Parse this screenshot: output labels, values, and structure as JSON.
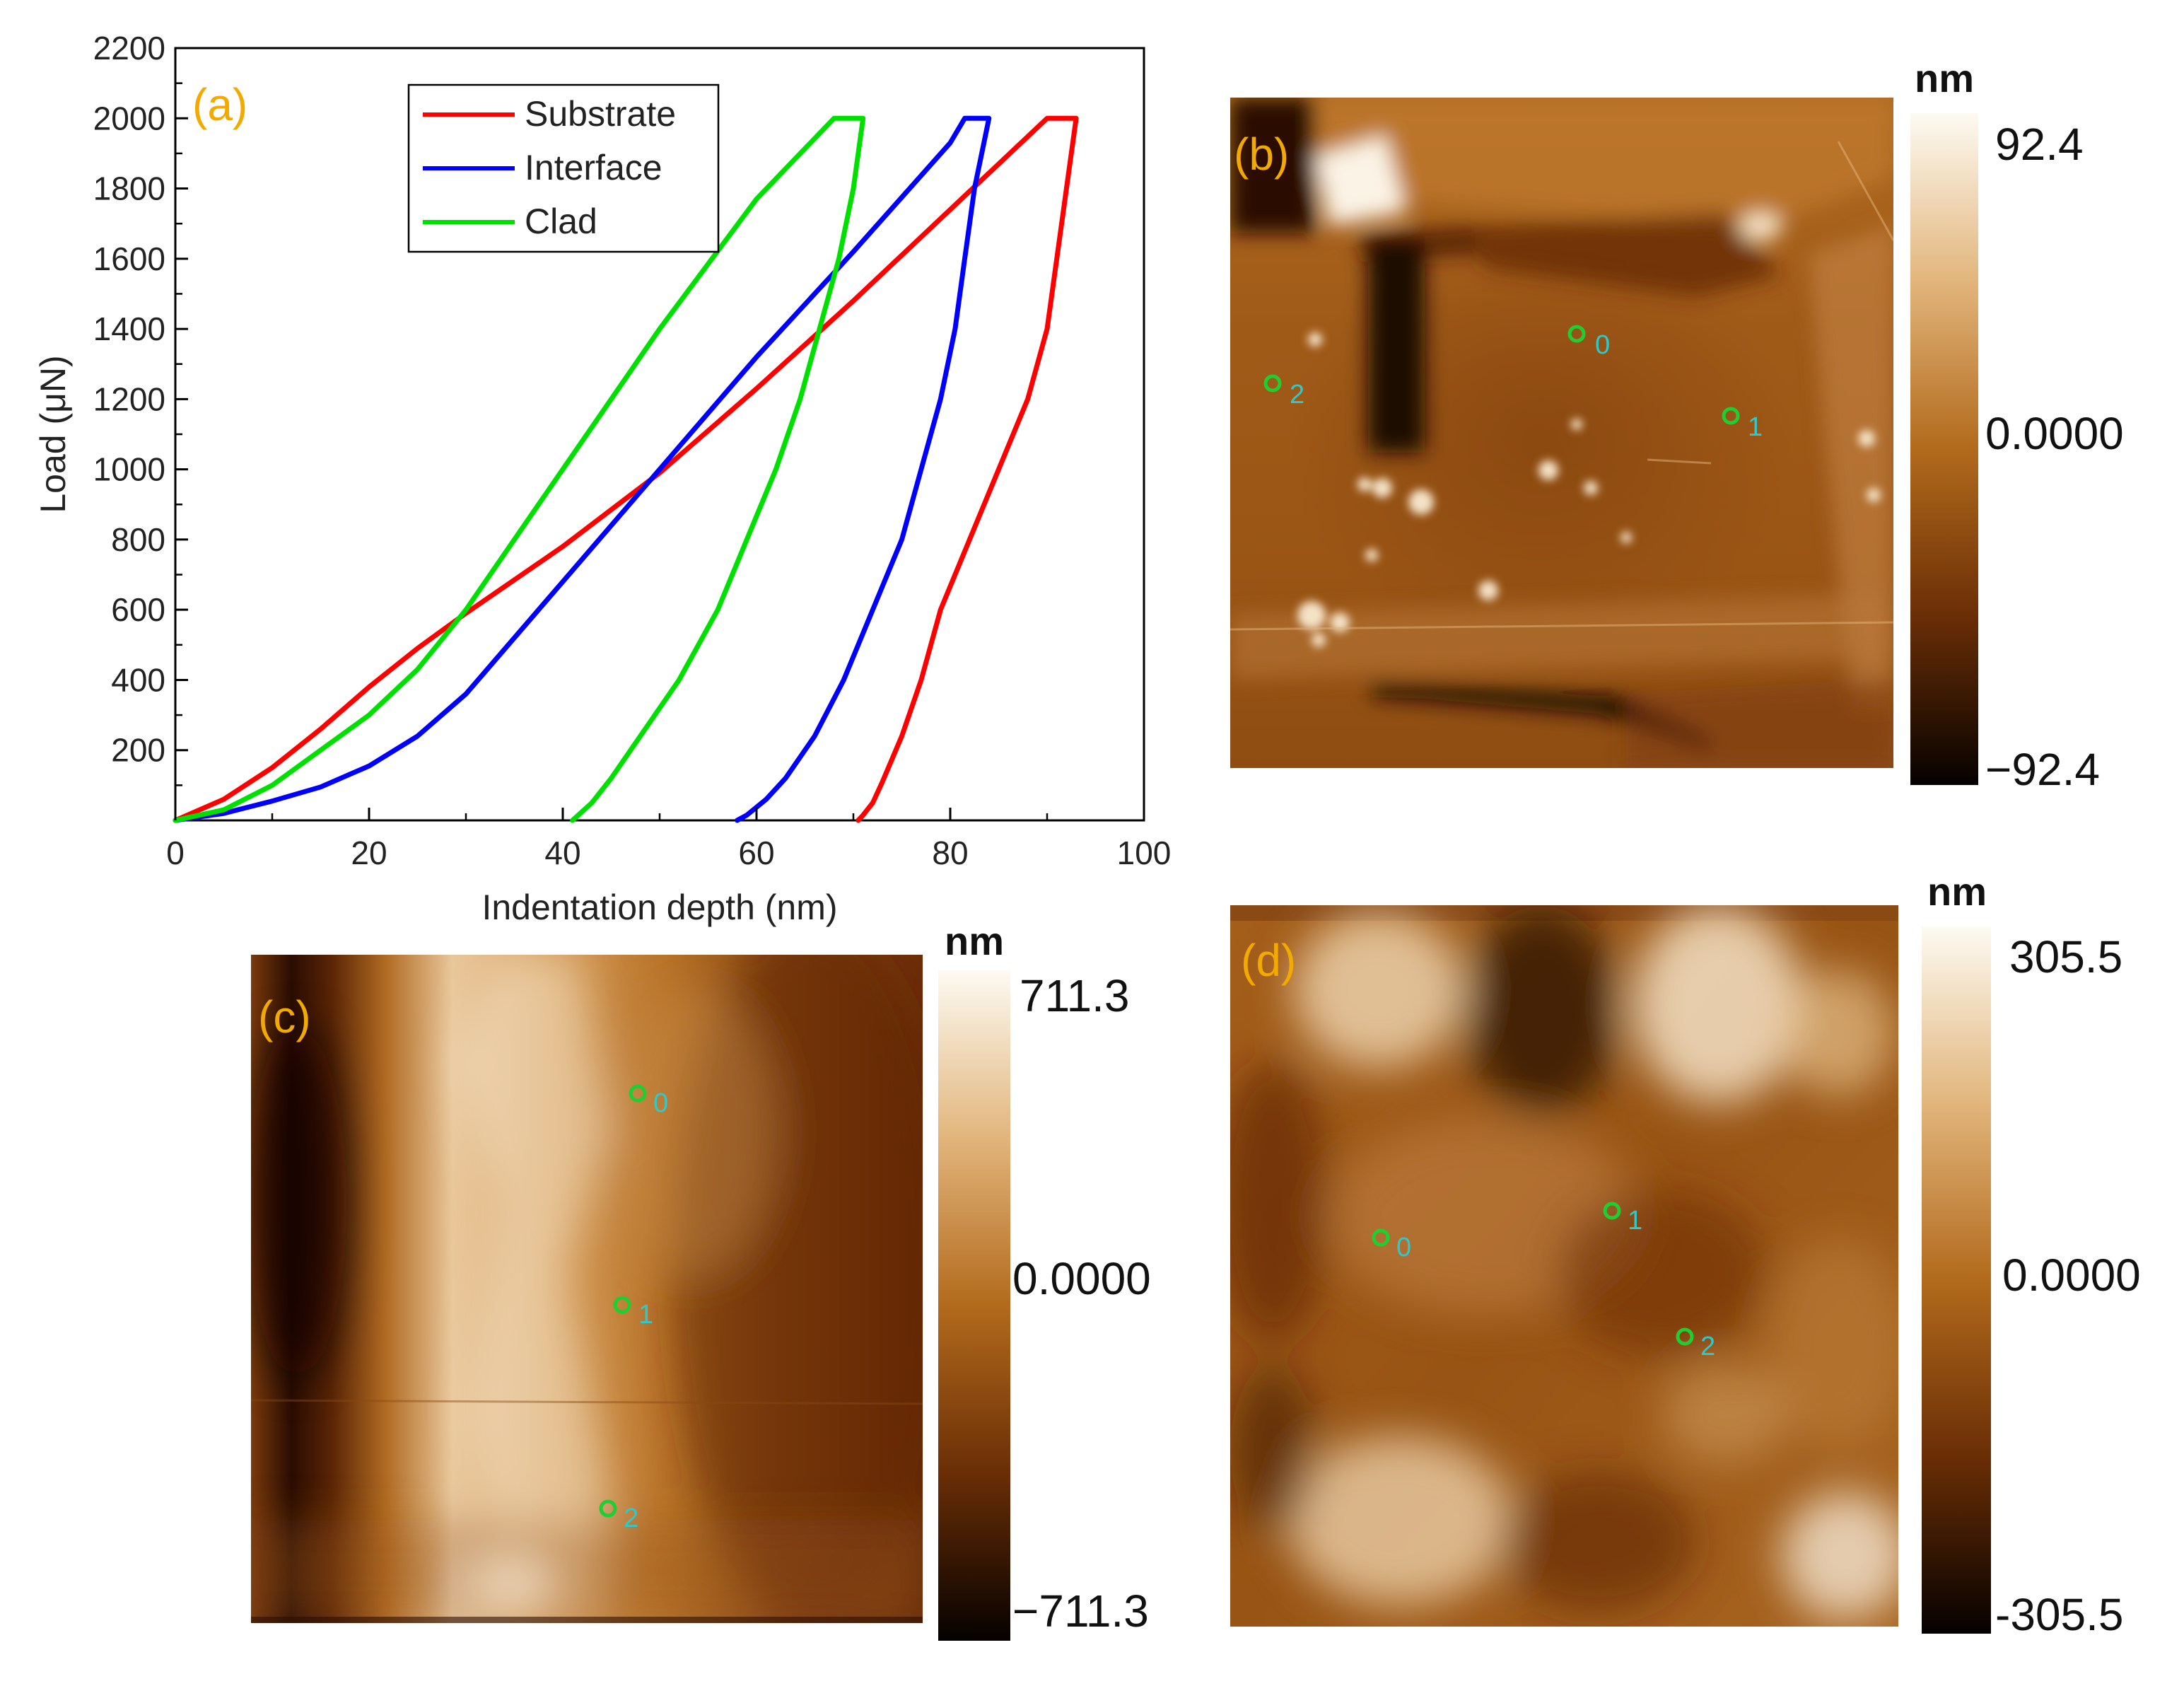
{
  "chart_data": [
    {
      "type": "line",
      "panel_label": "(a)",
      "title": "",
      "xlabel": "Indentation depth (nm)",
      "ylabel": "Load (μN)",
      "xlim": [
        0,
        100
      ],
      "ylim": [
        0,
        2200
      ],
      "xticks": [
        0,
        20,
        40,
        60,
        80,
        100
      ],
      "yticks": [
        200,
        400,
        600,
        800,
        1000,
        1200,
        1400,
        1600,
        1800,
        2000,
        2200
      ],
      "grid": false,
      "legend": "top-center",
      "series": [
        {
          "name": "Substrate",
          "color": "#ff0000",
          "loading": {
            "x": [
              0,
              5,
              10,
              15,
              20,
              25,
              30,
              40,
              50,
              60,
              70,
              80,
              90
            ],
            "y": [
              0,
              60,
              150,
              260,
              380,
              490,
              590,
              780,
              990,
              1230,
              1480,
              1740,
              2000
            ]
          },
          "hold": {
            "x": [
              90,
              93
            ],
            "y": [
              2000,
              2000
            ]
          },
          "unloading": {
            "x": [
              93,
              92,
              91,
              90,
              88,
              85,
              82,
              79,
              77,
              75,
              73,
              72,
              71,
              70.5
            ],
            "y": [
              2000,
              1800,
              1600,
              1400,
              1200,
              1000,
              800,
              600,
              400,
              240,
              110,
              50,
              15,
              0
            ]
          }
        },
        {
          "name": "Interface",
          "color": "#0000ff",
          "loading": {
            "x": [
              0,
              5,
              10,
              15,
              20,
              25,
              30,
              40,
              50,
              60,
              70,
              80,
              81.5
            ],
            "y": [
              0,
              20,
              55,
              95,
              155,
              240,
              360,
              680,
              1000,
              1320,
              1620,
              1930,
              2000
            ]
          },
          "hold": {
            "x": [
              81.5,
              84
            ],
            "y": [
              2000,
              2000
            ]
          },
          "unloading": {
            "x": [
              84,
              82.5,
              81.5,
              80.5,
              79,
              77,
              75,
              72,
              69,
              66,
              63,
              61,
              59,
              58
            ],
            "y": [
              2000,
              1800,
              1600,
              1400,
              1200,
              1000,
              800,
              600,
              400,
              240,
              120,
              60,
              15,
              0
            ]
          }
        },
        {
          "name": "Clad",
          "color": "#00e000",
          "loading": {
            "x": [
              0,
              5,
              10,
              15,
              20,
              25,
              30,
              40,
              50,
              60,
              68
            ],
            "y": [
              0,
              30,
              100,
              200,
              300,
              430,
              600,
              1000,
              1400,
              1770,
              2000
            ]
          },
          "hold": {
            "x": [
              68,
              71
            ],
            "y": [
              2000,
              2000
            ]
          },
          "unloading": {
            "x": [
              71,
              70,
              68.5,
              66.5,
              64.5,
              62,
              59,
              56,
              52,
              48,
              45,
              43,
              41
            ],
            "y": [
              2000,
              1800,
              1600,
              1400,
              1200,
              1000,
              800,
              600,
              400,
              240,
              120,
              50,
              0
            ]
          }
        }
      ]
    },
    {
      "type": "heatmap",
      "panel_label": "(b)",
      "colorbar_unit": "nm",
      "colorbar_max_label": "92.4",
      "colorbar_mid_label": "0.0000",
      "colorbar_min_label": "−92.4",
      "zlim": [
        -92.4,
        92.4
      ],
      "markers": [
        "0",
        "1",
        "2"
      ]
    },
    {
      "type": "heatmap",
      "panel_label": "(c)",
      "colorbar_unit": "nm",
      "colorbar_max_label": "711.3",
      "colorbar_mid_label": "0.0000",
      "colorbar_min_label": "−711.3",
      "zlim": [
        -711.3,
        711.3
      ],
      "markers": [
        "0",
        "1",
        "2"
      ]
    },
    {
      "type": "heatmap",
      "panel_label": "(d)",
      "colorbar_unit": "nm",
      "colorbar_max_label": "305.5",
      "colorbar_mid_label": "0.0000",
      "colorbar_min_label": "-305.5",
      "zlim": [
        -305.5,
        305.5
      ],
      "markers": [
        "0",
        "1",
        "2"
      ]
    }
  ],
  "colors": {
    "panel_label": "#f2a900",
    "marker_ring": "#22cc33",
    "marker_label": "#33c8c8"
  }
}
